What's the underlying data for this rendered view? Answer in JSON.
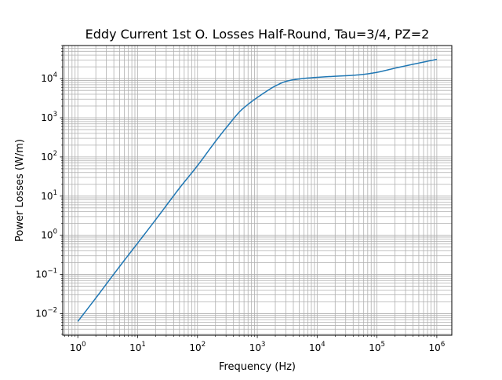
{
  "chart_data": {
    "type": "line",
    "title": "Eddy Current 1st O. Losses Half-Round, Tau=3/4, PZ=2",
    "xlabel": "Frequency (Hz)",
    "ylabel": "Power Losses (W/m)",
    "xscale": "log",
    "yscale": "log",
    "xlim": [
      0.56,
      1780000.0
    ],
    "ylim": [
      0.0028,
      70000
    ],
    "grid": "major and minor",
    "line_color": "#1f77b4",
    "x_ticks": [
      {
        "value": 1,
        "mant": "10",
        "exp": "0"
      },
      {
        "value": 10,
        "mant": "10",
        "exp": "1"
      },
      {
        "value": 100,
        "mant": "10",
        "exp": "2"
      },
      {
        "value": 1000,
        "mant": "10",
        "exp": "3"
      },
      {
        "value": 10000,
        "mant": "10",
        "exp": "4"
      },
      {
        "value": 100000,
        "mant": "10",
        "exp": "5"
      },
      {
        "value": 1000000,
        "mant": "10",
        "exp": "6"
      }
    ],
    "y_ticks": [
      {
        "value": 0.01,
        "mant": "10",
        "exp": "−2"
      },
      {
        "value": 0.1,
        "mant": "10",
        "exp": "−1"
      },
      {
        "value": 1,
        "mant": "10",
        "exp": "0"
      },
      {
        "value": 10,
        "mant": "10",
        "exp": "1"
      },
      {
        "value": 100,
        "mant": "10",
        "exp": "2"
      },
      {
        "value": 1000,
        "mant": "10",
        "exp": "3"
      },
      {
        "value": 10000,
        "mant": "10",
        "exp": "4"
      }
    ],
    "series": [
      {
        "x": [
          1,
          2,
          5,
          10,
          20,
          50,
          100,
          200,
          300,
          500,
          700,
          1000,
          1500,
          2000,
          3000,
          5000,
          10000,
          20000,
          50000,
          100000,
          200000,
          500000,
          1000000
        ],
        "y": [
          0.0063,
          0.025,
          0.16,
          0.63,
          2.5,
          16,
          60,
          250,
          550,
          1400,
          2200,
          3300,
          5000,
          6500,
          8500,
          9800,
          10800,
          11500,
          12500,
          14500,
          18500,
          25000,
          31000
        ]
      }
    ]
  }
}
